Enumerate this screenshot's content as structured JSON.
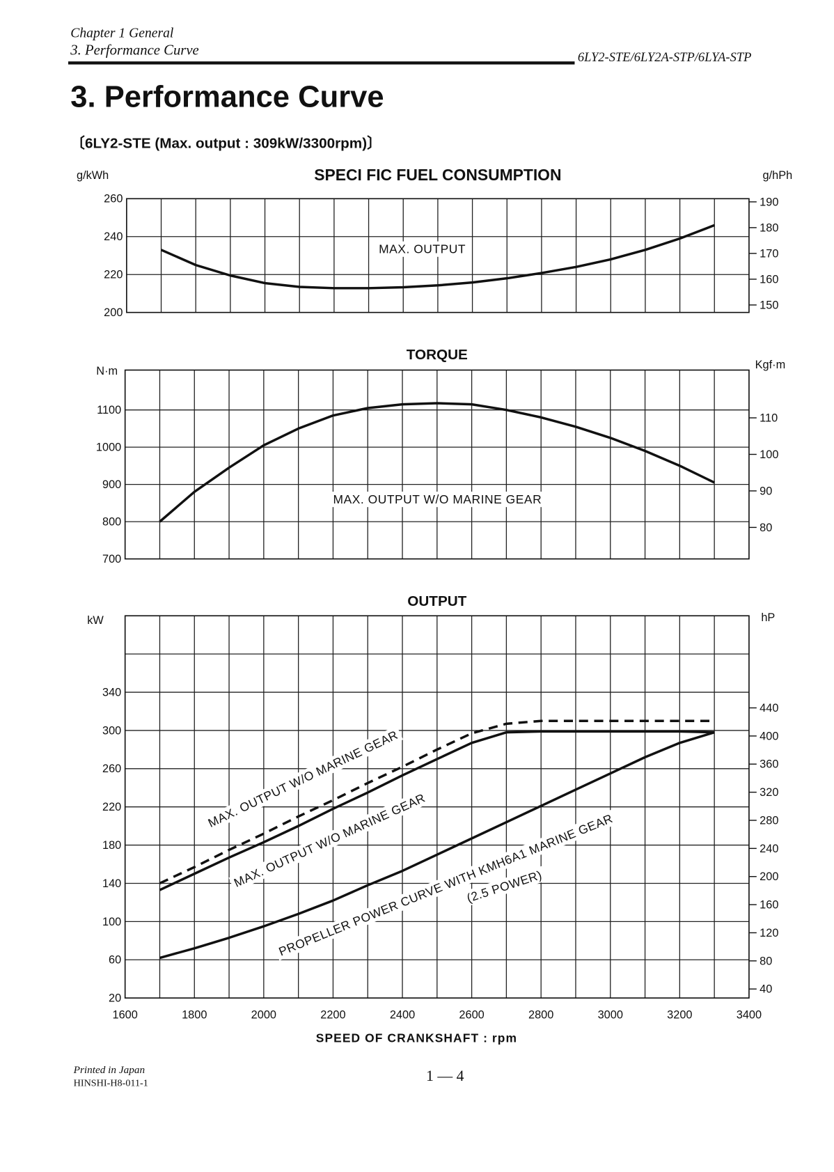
{
  "header": {
    "chapter": "Chapter 1 General",
    "section": "3. Performance  Curve",
    "models": "6LY2-STE/6LY2A-STP/6LYA-STP"
  },
  "title": "3. Performance  Curve",
  "subtitle": "〔6LY2-STE (Max. output : 309kW/3300rpm)〕",
  "footer": {
    "printed": "Printed in Japan",
    "code": "HINSHI-H8-011-1",
    "page": "1 — 4"
  },
  "chart_data": [
    {
      "type": "line",
      "title": "SPECI FIC  FUEL  CONSUMPTION",
      "ylabel": "g/kWh",
      "ylabel_right": "g/hPh",
      "right_factor": 0.7355,
      "ylim": [
        200,
        260
      ],
      "xlim": [
        1600,
        3400
      ],
      "yticks": [
        "200",
        "220",
        "240",
        "260"
      ],
      "yticks_right": [
        "150",
        "160",
        "170",
        "180",
        "190"
      ],
      "annotations": [
        "MAX.  OUTPUT"
      ],
      "x": [
        1700,
        1800,
        1900,
        2000,
        2100,
        2200,
        2300,
        2400,
        2500,
        2600,
        2700,
        2800,
        2900,
        3000,
        3100,
        3200,
        3300
      ],
      "series": [
        {
          "name": "MAX. OUTPUT",
          "style": "solid",
          "values": [
            233,
            225,
            219.5,
            215.5,
            213.5,
            212.8,
            212.8,
            213.3,
            214.3,
            215.8,
            218,
            220.8,
            224,
            228,
            233,
            239,
            246
          ]
        }
      ]
    },
    {
      "type": "line",
      "title": "TORQUE",
      "ylabel": "N·m",
      "ylabel_right": "Kgf·m",
      "right_factor": 9.80665,
      "ylim": [
        700,
        1207
      ],
      "xlim": [
        1600,
        3400
      ],
      "yticks": [
        "700",
        "800",
        "900",
        "1000",
        "1100"
      ],
      "yticks_right": [
        "80",
        "90",
        "100",
        "110"
      ],
      "annotations": [
        "MAX.  OUTPUT  W/O  MARINE   GEAR"
      ],
      "x": [
        1700,
        1800,
        1900,
        2000,
        2100,
        2200,
        2300,
        2400,
        2500,
        2600,
        2700,
        2800,
        2900,
        3000,
        3100,
        3200,
        3300
      ],
      "series": [
        {
          "name": "MAX. OUTPUT W/O MARINE GEAR",
          "style": "solid",
          "values": [
            800,
            880,
            945,
            1005,
            1050,
            1085,
            1105,
            1115,
            1118,
            1115,
            1100,
            1080,
            1055,
            1025,
            990,
            950,
            905
          ]
        }
      ]
    },
    {
      "type": "line",
      "title": "OUTPUT",
      "ylabel": "kW",
      "ylabel_right": "hP",
      "right_factor": 0.7355,
      "ylim": [
        20,
        420
      ],
      "xlim": [
        1600,
        3400
      ],
      "xticks": [
        "1600",
        "1800",
        "2000",
        "2200",
        "2400",
        "2600",
        "2800",
        "3000",
        "3200",
        "3400"
      ],
      "xlabel": "SPEED  OF  CRANKSHAFT :  rpm",
      "yticks": [
        "20",
        "60",
        "100",
        "140",
        "180",
        "220",
        "260",
        "300",
        "340"
      ],
      "yticks_right": [
        "40",
        "80",
        "120",
        "160",
        "200",
        "240",
        "280",
        "320",
        "360",
        "400",
        "440"
      ],
      "annotations": [
        "MAX.  OUTPUT  W/O  MARINE   GEAR",
        "MAX.  OUTPUT  W/O  MARINE   GEAR",
        "PROPELLER  POWER  CURVE  WITH KMH6A1  MARINE  GEAR",
        "(2.5  POWER)"
      ],
      "x": [
        1700,
        1800,
        1900,
        2000,
        2100,
        2200,
        2300,
        2400,
        2500,
        2600,
        2700,
        2800,
        2900,
        3000,
        3100,
        3200,
        3300
      ],
      "series": [
        {
          "name": "MAX. OUTPUT W/O MARINE GEAR (dashed)",
          "style": "dashed",
          "values": [
            140,
            157,
            175,
            192,
            210,
            227,
            245,
            262,
            280,
            297,
            307,
            310,
            310,
            310,
            310,
            310,
            310
          ]
        },
        {
          "name": "MAX. OUTPUT W/O MARINE GEAR",
          "style": "solid",
          "values": [
            133,
            150,
            167,
            183,
            200,
            218,
            235,
            253,
            270,
            287,
            298,
            299,
            299,
            299,
            299,
            299,
            298
          ]
        },
        {
          "name": "PROPELLER POWER CURVE WITH KMH6A1 MARINE GEAR (2.5 POWER)",
          "style": "solid",
          "values": [
            62,
            72,
            83,
            95,
            108,
            122,
            138,
            153,
            170,
            187,
            204,
            221,
            238,
            255,
            272,
            287,
            298
          ]
        }
      ]
    }
  ]
}
